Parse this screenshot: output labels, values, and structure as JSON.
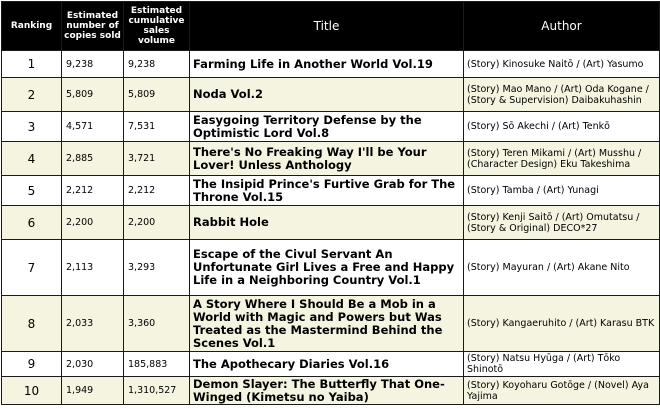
{
  "headers": {
    "ranking": "Ranking",
    "copies": "Estimated number of copies sold",
    "cumulative": "Estimated cumulative sales volume",
    "title": "Title",
    "author": "Author"
  },
  "rows": [
    {
      "rank": "1",
      "copies": "9,238",
      "cumulative": "9,238",
      "title": "Farming Life in Another World  Vol.19",
      "author": "(Story) Kinosuke Naitō / (Art) Yasumo"
    },
    {
      "rank": "2",
      "copies": "5,809",
      "cumulative": "5,809",
      "title": "Noda Vol.2",
      "author": "(Story) Mao Mano / (Art) Oda Kogane / (Story & Supervision) Daibakuhashin"
    },
    {
      "rank": "3",
      "copies": "4,571",
      "cumulative": "7,531",
      "title": "Easygoing Territory Defense by the Optimistic Lord Vol.8",
      "author": "(Story) Sō Akechi / (Art) Tenkō"
    },
    {
      "rank": "4",
      "copies": "2,885",
      "cumulative": "3,721",
      "title": "There's No Freaking Way I'll be Your Lover! Unless Anthology",
      "author": "(Story) Teren Mikami / (Art) Musshu / (Character Design) Eku Takeshima"
    },
    {
      "rank": "5",
      "copies": "2,212",
      "cumulative": "2,212",
      "title": "The Insipid Prince's Furtive Grab for The Throne Vol.15",
      "author": "(Story) Tamba / (Art) Yunagi"
    },
    {
      "rank": "6",
      "copies": "2,200",
      "cumulative": "2,200",
      "title": "Rabbit Hole",
      "author": "(Story) Kenji Saitō / (Art) Omutatsu / (Story & Original) DECO*27"
    },
    {
      "rank": "7",
      "copies": "2,113",
      "cumulative": "3,293",
      "title": "Escape of the Civul Servant An Unfortunate Girl Lives a Free and Happy Life in a Neighboring Country Vol.1",
      "author": "(Story) Mayuran / (Art) Akane Nito"
    },
    {
      "rank": "8",
      "copies": "2,033",
      "cumulative": "3,360",
      "title": "A Story Where I Should Be a Mob in a World with Magic and Powers but Was Treated as the Mastermind Behind the Scenes Vol.1",
      "author": "(Story) Kangaeruhito / (Art) Karasu BTK"
    },
    {
      "rank": "9",
      "copies": "2,030",
      "cumulative": "185,883",
      "title": "The Apothecary Diaries Vol.16",
      "author": "(Story) Natsu Hyūga / (Art) Tōko Shinotō"
    },
    {
      "rank": "10",
      "copies": "1,949",
      "cumulative": "1,310,527",
      "title": "Demon Slayer: The Butterfly That One-Winged (Kimetsu no Yaiba)",
      "author": "(Story) Koyoharu Gotōge / (Novel) Aya Yajima"
    }
  ]
}
